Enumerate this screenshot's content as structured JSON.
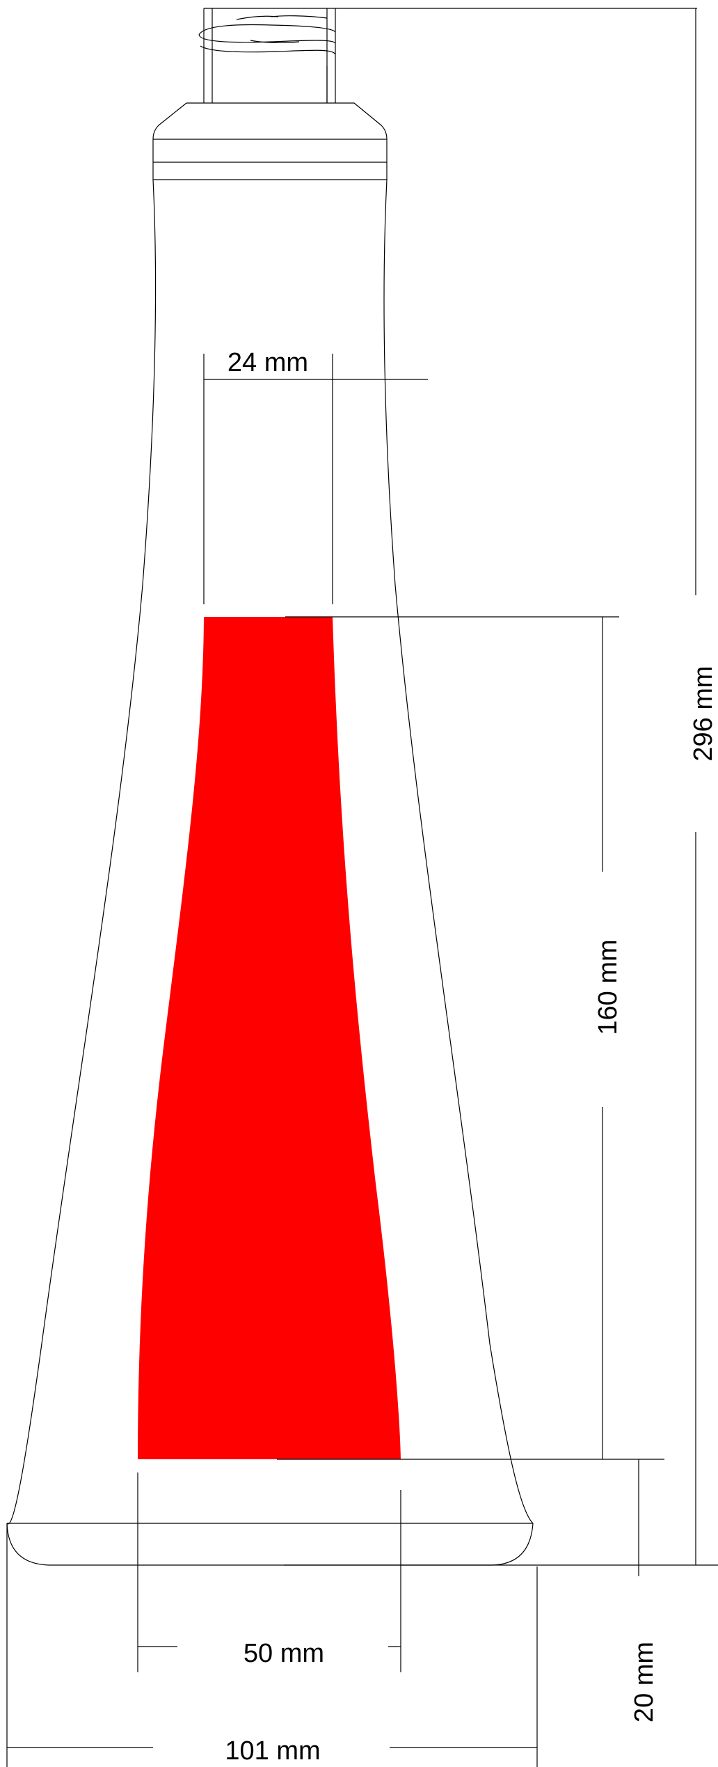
{
  "drawing": {
    "label_colour": "#ff0000",
    "dimensions": {
      "label_width": "24 mm",
      "total_height": "296 mm",
      "label_height": "160 mm",
      "label_bottom_width": "50 mm",
      "base_height": "20 mm",
      "base_width": "101 mm"
    }
  }
}
